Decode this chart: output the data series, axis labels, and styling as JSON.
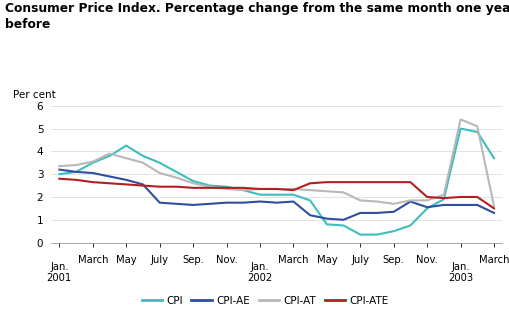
{
  "title_line1": "Consumer Price Index. Percentage change from the same month one year",
  "title_line2": "before",
  "ylabel": "Per cent",
  "ylim": [
    0,
    6
  ],
  "yticks": [
    0,
    1,
    2,
    3,
    4,
    5,
    6
  ],
  "tick_month_labels": [
    "Jan.",
    "March",
    "May",
    "July",
    "Sep.",
    "Nov.",
    "Jan.",
    "March",
    "May",
    "July",
    "Sep.",
    "Nov.",
    "Jan.",
    "March"
  ],
  "tick_year_labels": [
    "2001",
    "",
    "",
    "",
    "",
    "",
    "2002",
    "",
    "",
    "",
    "",
    "",
    "2003",
    ""
  ],
  "tick_positions": [
    0,
    2,
    4,
    6,
    8,
    10,
    12,
    14,
    16,
    18,
    20,
    22,
    24,
    26
  ],
  "CPI": [
    3.0,
    3.1,
    3.5,
    3.8,
    4.25,
    3.8,
    3.5,
    3.1,
    2.7,
    2.5,
    2.45,
    2.3,
    2.1,
    2.1,
    2.1,
    1.85,
    0.8,
    0.75,
    0.35,
    0.35,
    0.5,
    0.75,
    1.5,
    1.9,
    5.0,
    4.85,
    3.7
  ],
  "CPI_AE": [
    3.2,
    3.1,
    3.05,
    2.9,
    2.75,
    2.55,
    1.75,
    1.7,
    1.65,
    1.7,
    1.75,
    1.75,
    1.8,
    1.75,
    1.8,
    1.2,
    1.05,
    1.0,
    1.3,
    1.3,
    1.35,
    1.8,
    1.55,
    1.65,
    1.65,
    1.65,
    1.3
  ],
  "CPI_AT": [
    3.35,
    3.4,
    3.55,
    3.9,
    3.7,
    3.5,
    3.05,
    2.85,
    2.6,
    2.45,
    2.35,
    2.3,
    2.35,
    2.35,
    2.35,
    2.3,
    2.25,
    2.2,
    1.85,
    1.8,
    1.7,
    1.85,
    1.85,
    2.1,
    5.4,
    5.1,
    1.6
  ],
  "CPI_ATE": [
    2.8,
    2.75,
    2.65,
    2.6,
    2.55,
    2.5,
    2.45,
    2.45,
    2.4,
    2.4,
    2.4,
    2.4,
    2.35,
    2.35,
    2.3,
    2.6,
    2.65,
    2.65,
    2.65,
    2.65,
    2.65,
    2.65,
    2.0,
    1.95,
    2.0,
    2.0,
    1.5
  ],
  "CPI_color": "#3dbdbd",
  "CPI_AE_color": "#2d4fa0",
  "CPI_AT_color": "#b8b8b8",
  "CPI_ATE_color": "#b02020",
  "title_bar_color": "#40b8b8",
  "bg_color": "#ffffff",
  "grid_color": "#dddddd",
  "line_width": 1.5,
  "legend_labels": [
    "CPI",
    "CPI-AE",
    "CPI-AT",
    "CPI-ATE"
  ]
}
